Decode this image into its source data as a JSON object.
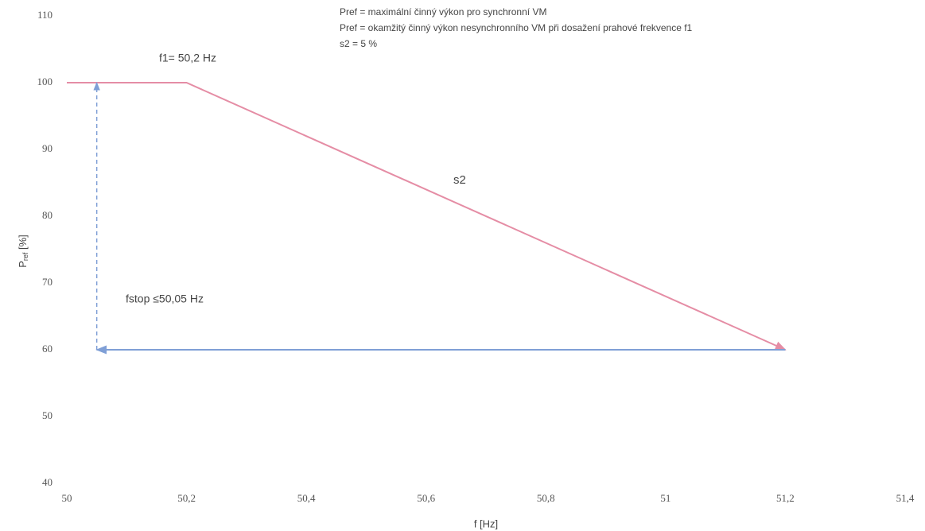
{
  "chart_data": {
    "type": "line",
    "ylabel": "P",
    "ylabel_sub": "ref",
    "ylabel_unit": " [%]",
    "xlabel": "f [Hz]",
    "xlim": [
      50,
      51.4
    ],
    "ylim": [
      40,
      110
    ],
    "xticks": [
      50,
      {
        "value": 50.2,
        "label": "50,2"
      },
      {
        "value": 50.4,
        "label": "50,4"
      },
      {
        "value": 50.6,
        "label": "50,6"
      },
      {
        "value": 50.8,
        "label": "50,8"
      },
      51,
      {
        "value": 51.2,
        "label": "51,2"
      },
      {
        "value": 51.4,
        "label": "51,4"
      }
    ],
    "yticks": [
      40,
      50,
      60,
      70,
      80,
      90,
      100,
      110
    ],
    "grid": false,
    "series": [
      {
        "color": "#e58da5",
        "dashed": false,
        "arrow": true,
        "x": [
          50,
          50.2,
          51.2
        ],
        "values": [
          100,
          100,
          60
        ]
      },
      {
        "color": "#7f9fd6",
        "dashed": false,
        "arrow": true,
        "x": [
          51.2,
          50.05
        ],
        "values": [
          60,
          60
        ]
      },
      {
        "color": "#7f9fd6",
        "dashed": true,
        "arrow": true,
        "x": [
          50.05,
          50.05
        ],
        "values": [
          60,
          100
        ]
      }
    ],
    "annotations": [
      "f1= 50,2 Hz",
      "s2",
      "fstop ≤50,05 Hz"
    ],
    "notes": [
      "Pref = maximální činný výkon pro synchronní VM",
      "Pref = okamžitý činný výkon nesynchronního VM při dosažení prahové frekvence f1",
      "s2 = 5 %"
    ]
  }
}
